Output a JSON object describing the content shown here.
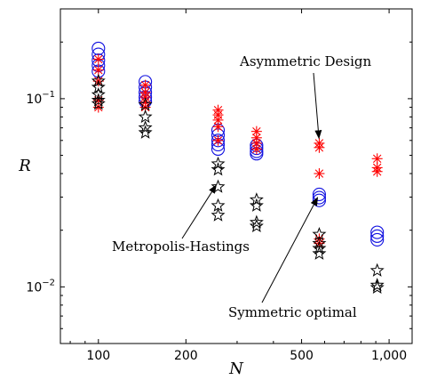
{
  "chart_data": {
    "type": "scatter",
    "xscale": "log",
    "yscale": "log",
    "xlabel": "N",
    "ylabel": "R",
    "xlim": [
      74,
      1200
    ],
    "ylim": [
      0.005,
      0.3
    ],
    "xticks": [
      100,
      200,
      500,
      1000
    ],
    "xtick_labels": [
      "100",
      "200",
      "500",
      "1,000"
    ],
    "ytick_labels": [
      {
        "base": "10",
        "exp": "−1"
      },
      {
        "base": "10",
        "exp": "−2"
      }
    ],
    "yticks": [
      0.1,
      0.01
    ],
    "grid": false,
    "legend": "none",
    "series": [
      {
        "marker": "circle",
        "color": "#1010e0",
        "points": [
          [
            100,
            0.185
          ],
          [
            100,
            0.172
          ],
          [
            100,
            0.16
          ],
          [
            100,
            0.15
          ],
          [
            100,
            0.14
          ],
          [
            145,
            0.123
          ],
          [
            145,
            0.115
          ],
          [
            145,
            0.108
          ],
          [
            145,
            0.102
          ],
          [
            145,
            0.097
          ],
          [
            258,
            0.068
          ],
          [
            258,
            0.064
          ],
          [
            258,
            0.06
          ],
          [
            258,
            0.057
          ],
          [
            258,
            0.054
          ],
          [
            350,
            0.0565
          ],
          [
            350,
            0.0545
          ],
          [
            350,
            0.0525
          ],
          [
            350,
            0.051
          ],
          [
            575,
            0.031
          ],
          [
            575,
            0.0298
          ],
          [
            575,
            0.0288
          ],
          [
            910,
            0.0195
          ],
          [
            910,
            0.0186
          ],
          [
            910,
            0.0178
          ]
        ]
      },
      {
        "marker": "asterisk",
        "color": "#ff0000",
        "points": [
          [
            100,
            0.162
          ],
          [
            100,
            0.142
          ],
          [
            100,
            0.124
          ],
          [
            100,
            0.098
          ],
          [
            100,
            0.09
          ],
          [
            145,
            0.118
          ],
          [
            145,
            0.108
          ],
          [
            145,
            0.102
          ],
          [
            145,
            0.096
          ],
          [
            145,
            0.09
          ],
          [
            258,
            0.087
          ],
          [
            258,
            0.082
          ],
          [
            258,
            0.077
          ],
          [
            258,
            0.071
          ],
          [
            258,
            0.06
          ],
          [
            350,
            0.067
          ],
          [
            350,
            0.062
          ],
          [
            350,
            0.058
          ],
          [
            350,
            0.054
          ],
          [
            575,
            0.058
          ],
          [
            575,
            0.055
          ],
          [
            575,
            0.04
          ],
          [
            575,
            0.018
          ],
          [
            575,
            0.017
          ],
          [
            910,
            0.048
          ],
          [
            910,
            0.043
          ],
          [
            910,
            0.041
          ]
        ]
      },
      {
        "marker": "star",
        "color": "#000000",
        "points": [
          [
            100,
            0.124
          ],
          [
            100,
            0.115
          ],
          [
            100,
            0.105
          ],
          [
            100,
            0.098
          ],
          [
            100,
            0.094
          ],
          [
            145,
            0.093
          ],
          [
            145,
            0.08
          ],
          [
            145,
            0.07
          ],
          [
            145,
            0.066
          ],
          [
            258,
            0.045
          ],
          [
            258,
            0.042
          ],
          [
            258,
            0.034
          ],
          [
            258,
            0.027
          ],
          [
            258,
            0.024
          ],
          [
            350,
            0.029
          ],
          [
            350,
            0.027
          ],
          [
            350,
            0.022
          ],
          [
            350,
            0.021
          ],
          [
            575,
            0.019
          ],
          [
            575,
            0.017
          ],
          [
            575,
            0.016
          ],
          [
            575,
            0.015
          ],
          [
            910,
            0.0122
          ],
          [
            910,
            0.0102
          ],
          [
            910,
            0.0099
          ]
        ]
      }
    ],
    "annotations": [
      {
        "text": "Asymmetric Design",
        "tip": [
          575,
          0.059
        ]
      },
      {
        "text": "Metropolis-Hastings",
        "tip": [
          258,
          0.036
        ]
      },
      {
        "text": "Symmetric optimal",
        "tip": [
          575,
          0.031
        ]
      }
    ]
  }
}
